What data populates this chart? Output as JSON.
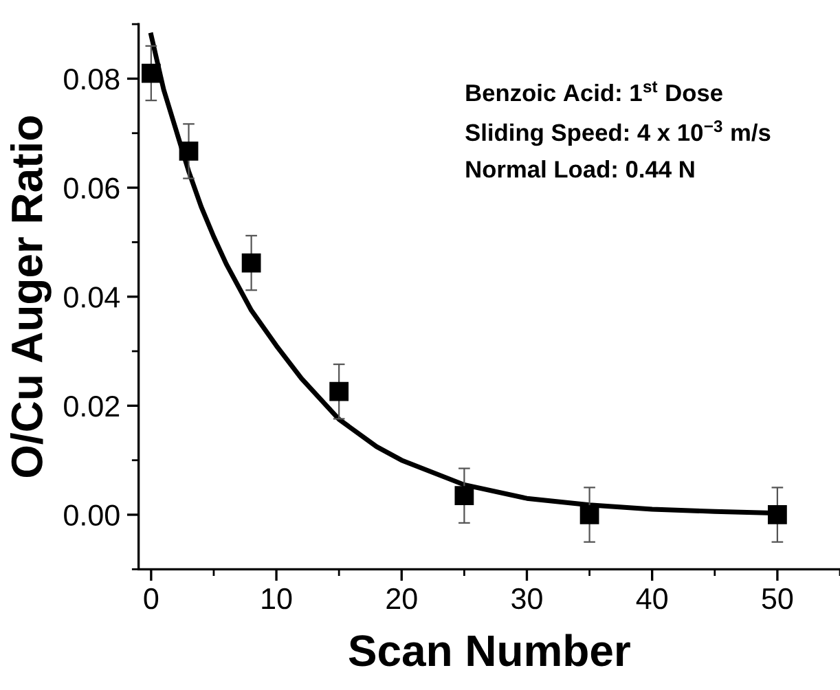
{
  "chart_data": {
    "type": "scatter",
    "xlabel": "Scan Number",
    "ylabel": "O/Cu Auger Ratio",
    "xlim": [
      -1,
      55
    ],
    "ylim": [
      -0.01,
      0.09
    ],
    "xticks": [
      0,
      10,
      20,
      30,
      40,
      50
    ],
    "yticks": [
      {
        "value": 0,
        "label": "0.00"
      },
      {
        "value": 0.02,
        "label": "0.02"
      },
      {
        "value": 0.04,
        "label": "0.04"
      },
      {
        "value": 0.06,
        "label": "0.06"
      },
      {
        "value": 0.08,
        "label": "0.08"
      }
    ],
    "grid": false,
    "legend": false,
    "series": [
      {
        "color": "#000000",
        "marker": "square",
        "x": [
          0,
          3,
          8,
          15,
          25,
          35,
          50
        ],
        "values": [
          0.081,
          0.0667,
          0.0462,
          0.0226,
          0.0035,
          0.0,
          0.0
        ],
        "errors": [
          0.005,
          0.005,
          0.005,
          0.005,
          0.005,
          0.005,
          0.005
        ]
      },
      {
        "type": "line",
        "color": "#000000",
        "marker": "none",
        "line_style": "solid",
        "x": [
          0,
          1,
          2,
          3,
          4,
          5,
          6,
          8,
          10,
          12,
          15,
          18,
          20,
          25,
          30,
          35,
          40,
          45,
          50
        ],
        "values": [
          0.088,
          0.078,
          0.0705,
          0.063,
          0.0565,
          0.051,
          0.046,
          0.0375,
          0.031,
          0.025,
          0.0175,
          0.0125,
          0.01,
          0.0055,
          0.003,
          0.0018,
          0.001,
          0.0006,
          0.0003
        ]
      }
    ],
    "annotations": [
      "Benzoic Acid: 1$^{st}$ Dose",
      "Sliding Speed: 4 x 10$^{−3}$ m/s",
      "Normal Load: 0.44 N"
    ]
  }
}
